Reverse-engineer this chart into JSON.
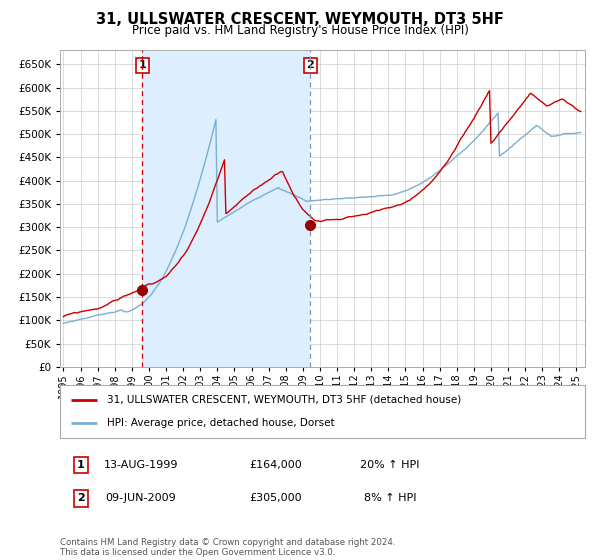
{
  "title": "31, ULLSWATER CRESCENT, WEYMOUTH, DT3 5HF",
  "subtitle": "Price paid vs. HM Land Registry's House Price Index (HPI)",
  "legend_line1": "31, ULLSWATER CRESCENT, WEYMOUTH, DT3 5HF (detached house)",
  "legend_line2": "HPI: Average price, detached house, Dorset",
  "note1_num": "1",
  "note1_date": "13-AUG-1999",
  "note1_price": "£164,000",
  "note1_hpi": "20% ↑ HPI",
  "note2_num": "2",
  "note2_date": "09-JUN-2009",
  "note2_price": "£305,000",
  "note2_hpi": "8% ↑ HPI",
  "footer": "Contains HM Land Registry data © Crown copyright and database right 2024.\nThis data is licensed under the Open Government Licence v3.0.",
  "red_line_color": "#cc0000",
  "blue_line_color": "#7aafd4",
  "shade_color": "#ddeeff",
  "grid_color": "#cccccc",
  "bg_color": "#ffffff",
  "sale1_date_num": 1999.617,
  "sale1_price": 164000,
  "sale2_date_num": 2009.436,
  "sale2_price": 305000,
  "vline1_color": "#cc0000",
  "vline2_color": "#7799bb",
  "ylim_max": 680000,
  "ylim_min": 0,
  "xstart": 1994.8,
  "xend": 2025.5
}
